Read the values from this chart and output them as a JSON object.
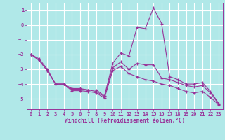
{
  "xlabel": "Windchill (Refroidissement éolien,°C)",
  "background_color": "#b0e8e8",
  "grid_color": "#ffffff",
  "line_color": "#993399",
  "x_hours": [
    0,
    1,
    2,
    3,
    4,
    5,
    6,
    7,
    8,
    9,
    10,
    11,
    12,
    13,
    14,
    15,
    16,
    17,
    18,
    19,
    20,
    21,
    22,
    23
  ],
  "line1": [
    -2.0,
    -2.3,
    -3.0,
    -4.0,
    -4.0,
    -4.3,
    -4.3,
    -4.4,
    -4.4,
    -4.8,
    -2.6,
    -1.9,
    -2.1,
    -0.15,
    -0.25,
    1.15,
    0.1,
    -3.5,
    -3.7,
    -4.0,
    -4.0,
    -3.9,
    -4.5,
    -5.3
  ],
  "line2": [
    -2.0,
    -2.4,
    -3.1,
    -4.0,
    -4.0,
    -4.35,
    -4.35,
    -4.4,
    -4.5,
    -4.85,
    -2.9,
    -2.5,
    -3.0,
    -2.6,
    -2.7,
    -2.7,
    -3.6,
    -3.7,
    -3.9,
    -4.1,
    -4.2,
    -4.1,
    -4.6,
    -5.35
  ],
  "line3": [
    -2.0,
    -2.4,
    -3.1,
    -4.0,
    -4.0,
    -4.45,
    -4.45,
    -4.5,
    -4.6,
    -4.95,
    -3.1,
    -2.8,
    -3.3,
    -3.5,
    -3.7,
    -3.8,
    -4.0,
    -4.1,
    -4.3,
    -4.5,
    -4.6,
    -4.5,
    -4.9,
    -5.4
  ],
  "xlim": [
    -0.5,
    23.5
  ],
  "ylim": [
    -5.7,
    1.5
  ],
  "yticks": [
    1,
    0,
    -1,
    -2,
    -3,
    -4,
    -5
  ],
  "xticks": [
    0,
    1,
    2,
    3,
    4,
    5,
    6,
    7,
    8,
    9,
    10,
    11,
    12,
    13,
    14,
    15,
    16,
    17,
    18,
    19,
    20,
    21,
    22,
    23
  ]
}
